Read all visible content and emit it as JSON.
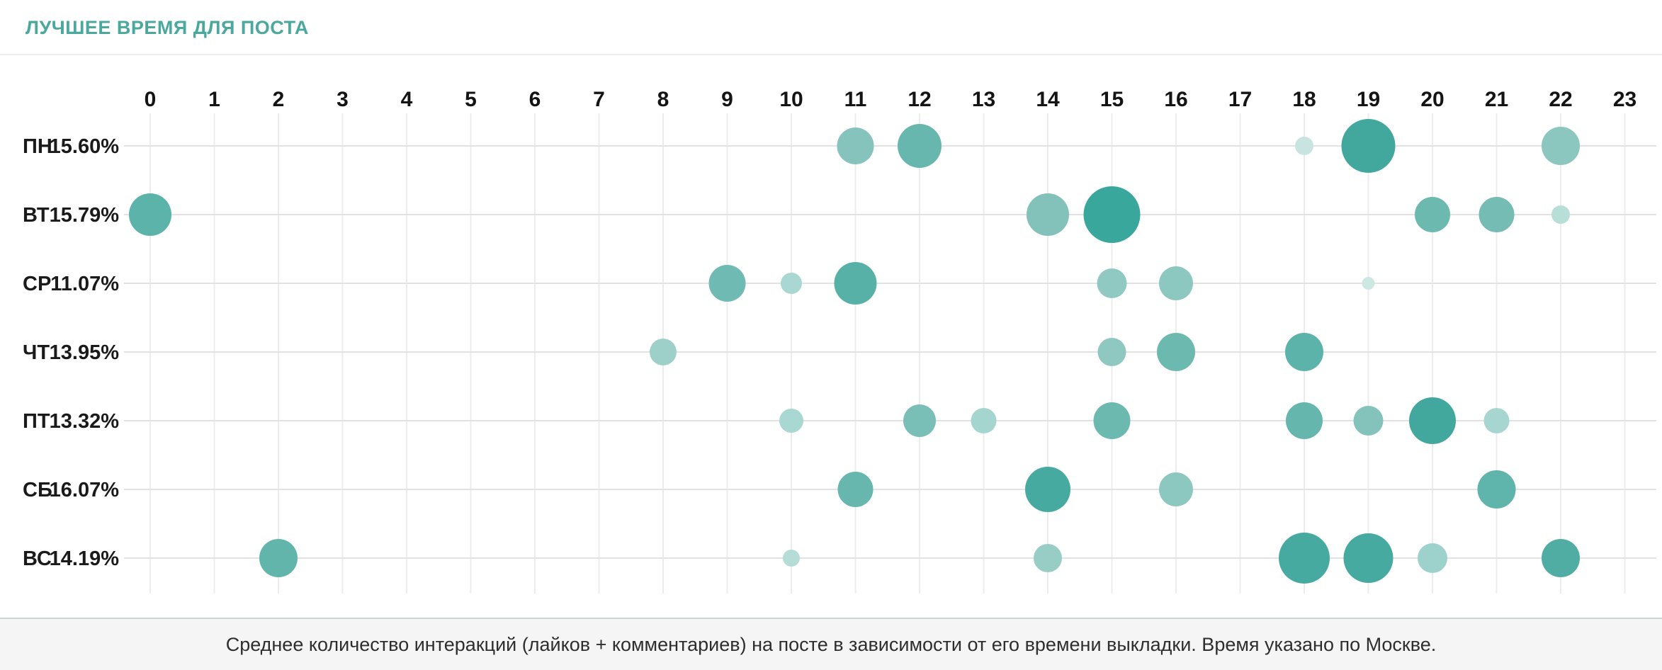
{
  "header": {
    "title": "ЛУЧШЕЕ ВРЕМЯ ДЛЯ ПОСТА",
    "accent_color": "#4aa89c"
  },
  "footer": {
    "note": "Среднее количество интеракций (лайков + комментариев) на посте в зависимости от его времени выкладки. Время указано по Москве."
  },
  "chart_data": {
    "type": "scatter",
    "title": "ЛУЧШЕЕ ВРЕМЯ ДЛЯ ПОСТА",
    "x_ticks": [
      "0",
      "1",
      "2",
      "3",
      "4",
      "5",
      "6",
      "7",
      "8",
      "9",
      "10",
      "11",
      "12",
      "13",
      "14",
      "15",
      "16",
      "17",
      "18",
      "19",
      "20",
      "21",
      "22",
      "23"
    ],
    "x_range": [
      0,
      23
    ],
    "grid": true,
    "legend": "none",
    "colors": {
      "grid_vertical": "#ececec",
      "grid_horizontal": "#e2e2e2",
      "bubble_dark": "#3aa79c",
      "bubble_medium": "#68b7ae",
      "bubble_light": "#a9d7d1",
      "bubble_lightest": "#cde7e2"
    },
    "rows": [
      {
        "day": "ПН",
        "percent": "15.60%",
        "points": [
          {
            "hour": 11,
            "r": 26,
            "color": "#85c3bc"
          },
          {
            "hour": 12,
            "r": 31,
            "color": "#68b7ae"
          },
          {
            "hour": 18,
            "r": 13,
            "color": "#c8e4e0"
          },
          {
            "hour": 19,
            "r": 38,
            "color": "#42a89d"
          },
          {
            "hour": 22,
            "r": 27,
            "color": "#8bc6bf"
          }
        ]
      },
      {
        "day": "ВТ",
        "percent": "15.79%",
        "points": [
          {
            "hour": 0,
            "r": 30,
            "color": "#5cb3a9"
          },
          {
            "hour": 14,
            "r": 30,
            "color": "#82c2bb"
          },
          {
            "hour": 15,
            "r": 40,
            "color": "#3aa79c"
          },
          {
            "hour": 20,
            "r": 25,
            "color": "#6cb9b0"
          },
          {
            "hour": 21,
            "r": 25,
            "color": "#74bcb4"
          },
          {
            "hour": 22,
            "r": 13,
            "color": "#b8ded8"
          }
        ]
      },
      {
        "day": "СР",
        "percent": "11.07%",
        "points": [
          {
            "hour": 9,
            "r": 26,
            "color": "#6fbab2"
          },
          {
            "hour": 10,
            "r": 15,
            "color": "#a9d7d1"
          },
          {
            "hour": 11,
            "r": 30,
            "color": "#58b1a7"
          },
          {
            "hour": 15,
            "r": 21,
            "color": "#90c9c2"
          },
          {
            "hour": 16,
            "r": 24,
            "color": "#8cc7c0"
          },
          {
            "hour": 19,
            "r": 9,
            "color": "#cde7e2"
          }
        ]
      },
      {
        "day": "ЧТ",
        "percent": "13.95%",
        "points": [
          {
            "hour": 8,
            "r": 19,
            "color": "#9ed0ca"
          },
          {
            "hour": 15,
            "r": 20,
            "color": "#8fc8c1"
          },
          {
            "hour": 16,
            "r": 27,
            "color": "#6cb9b0"
          },
          {
            "hour": 18,
            "r": 27,
            "color": "#5cb3a9"
          }
        ]
      },
      {
        "day": "ПТ",
        "percent": "13.32%",
        "points": [
          {
            "hour": 10,
            "r": 17,
            "color": "#a9d7d1"
          },
          {
            "hour": 12,
            "r": 23,
            "color": "#79bfb7"
          },
          {
            "hour": 13,
            "r": 18,
            "color": "#a5d5cf"
          },
          {
            "hour": 15,
            "r": 26,
            "color": "#6cb9b0"
          },
          {
            "hour": 18,
            "r": 26,
            "color": "#65b6ad"
          },
          {
            "hour": 19,
            "r": 21,
            "color": "#84c3bb"
          },
          {
            "hour": 20,
            "r": 33,
            "color": "#42a89d"
          },
          {
            "hour": 21,
            "r": 18,
            "color": "#a7d6d0"
          }
        ]
      },
      {
        "day": "СБ",
        "percent": "16.07%",
        "points": [
          {
            "hour": 11,
            "r": 25,
            "color": "#68b7ae"
          },
          {
            "hour": 14,
            "r": 32,
            "color": "#47aaa0"
          },
          {
            "hour": 16,
            "r": 24,
            "color": "#8cc7c0"
          },
          {
            "hour": 21,
            "r": 27,
            "color": "#5fb4ab"
          }
        ]
      },
      {
        "day": "ВС",
        "percent": "14.19%",
        "points": [
          {
            "hour": 2,
            "r": 27,
            "color": "#62b5ab"
          },
          {
            "hour": 10,
            "r": 12,
            "color": "#b5dcd7"
          },
          {
            "hour": 14,
            "r": 20,
            "color": "#98cdc6"
          },
          {
            "hour": 18,
            "r": 36,
            "color": "#46aaa0"
          },
          {
            "hour": 19,
            "r": 35,
            "color": "#46aaa0"
          },
          {
            "hour": 20,
            "r": 21,
            "color": "#9dd1cb"
          },
          {
            "hour": 22,
            "r": 27,
            "color": "#4fada3"
          }
        ]
      }
    ],
    "note": "Среднее количество интеракций (лайков + комментариев) на посте в зависимости от его времени выкладки. Время указано по Москве."
  }
}
